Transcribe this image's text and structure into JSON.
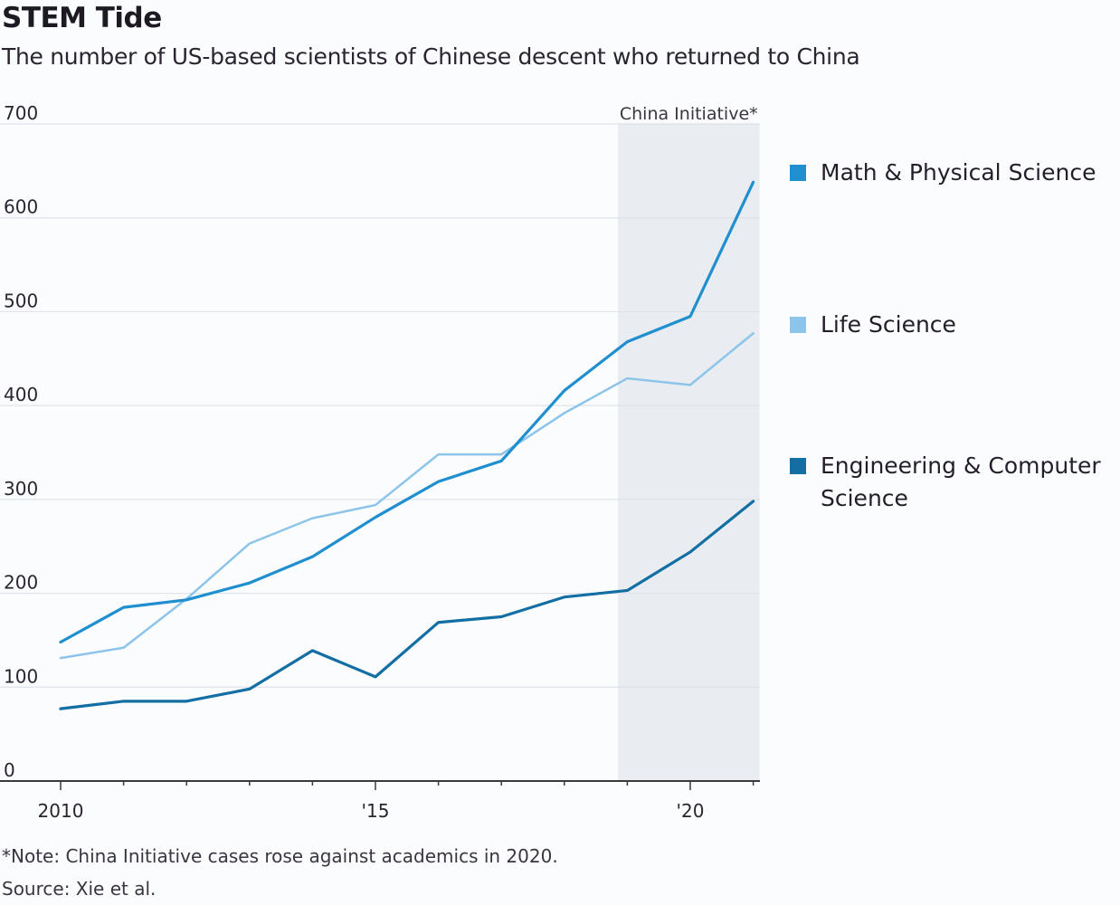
{
  "chart_data": {
    "type": "line",
    "title": "STEM Tide",
    "subtitle": "The number of US-based scientists of Chinese descent who returned to China",
    "xlabel": "",
    "ylabel": "",
    "x": [
      2010,
      2011,
      2012,
      2013,
      2014,
      2015,
      2016,
      2017,
      2018,
      2019,
      2020,
      2021
    ],
    "xlim": [
      2010,
      2021.1
    ],
    "ylim": [
      0,
      700
    ],
    "yticks": [
      0,
      100,
      200,
      300,
      400,
      500,
      600,
      700
    ],
    "ytick_labels": [
      "0",
      "100",
      "200",
      "300",
      "400",
      "500",
      "600",
      "700"
    ],
    "xticks": [
      2010,
      2015,
      2020
    ],
    "xtick_labels": [
      "2010",
      "'15",
      "'20"
    ],
    "grid": true,
    "legend_position": "right",
    "series": [
      {
        "name": "Math & Physical Science",
        "color": "#1f8fcf",
        "values": [
          148,
          185,
          193,
          211,
          239,
          281,
          319,
          341,
          416,
          468,
          495,
          638
        ]
      },
      {
        "name": "Life Science",
        "color": "#8cc4ea",
        "values": [
          131,
          142,
          194,
          253,
          280,
          294,
          348,
          348,
          392,
          429,
          422,
          477
        ]
      },
      {
        "name": "Engineering & Computer Science",
        "color": "#136fa3",
        "values": [
          77,
          85,
          85,
          98,
          139,
          111,
          169,
          175,
          196,
          203,
          244,
          298
        ]
      }
    ],
    "annotations": [
      {
        "type": "shaded-region",
        "label": "China Initiative*",
        "x_start": 2018.85,
        "x_end": 2021.1,
        "color": "#e9ecf1"
      }
    ]
  },
  "note": "*Note: China Initiative cases rose against academics in 2020.",
  "source": "Source: Xie et al."
}
